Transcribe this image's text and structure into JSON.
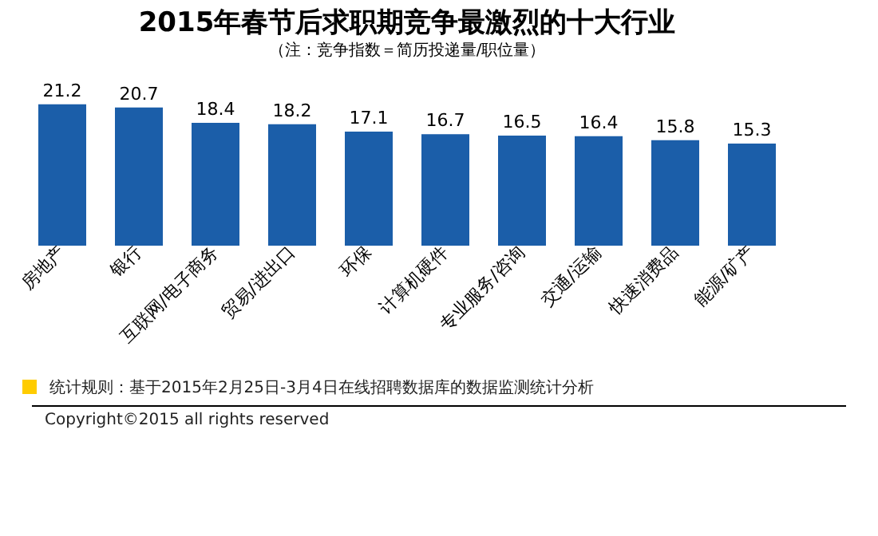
{
  "chart_data": {
    "type": "bar",
    "title": "2015年春节后求职期竞争最激烈的十大行业",
    "subtitle": "（注：竞争指数＝简历投递量/职位量）",
    "categories": [
      "房地产",
      "银行",
      "互联网/电子商务",
      "贸易/进出口",
      "环保",
      "计算机硬件",
      "专业服务/咨询",
      "交通/运输",
      "快速消费品",
      "能源/矿产"
    ],
    "values": [
      21.2,
      20.7,
      18.4,
      18.2,
      17.1,
      16.7,
      16.5,
      16.4,
      15.8,
      15.3
    ],
    "color": "#1b5ea9",
    "data_labels": true,
    "tick_labels": "x",
    "grid": false,
    "annotations": [
      "统计规则：基于2015年2月25日-3月4日在线招聘数据库的数据监测统计分析",
      "Copyright©2015 all rights reserved"
    ]
  }
}
